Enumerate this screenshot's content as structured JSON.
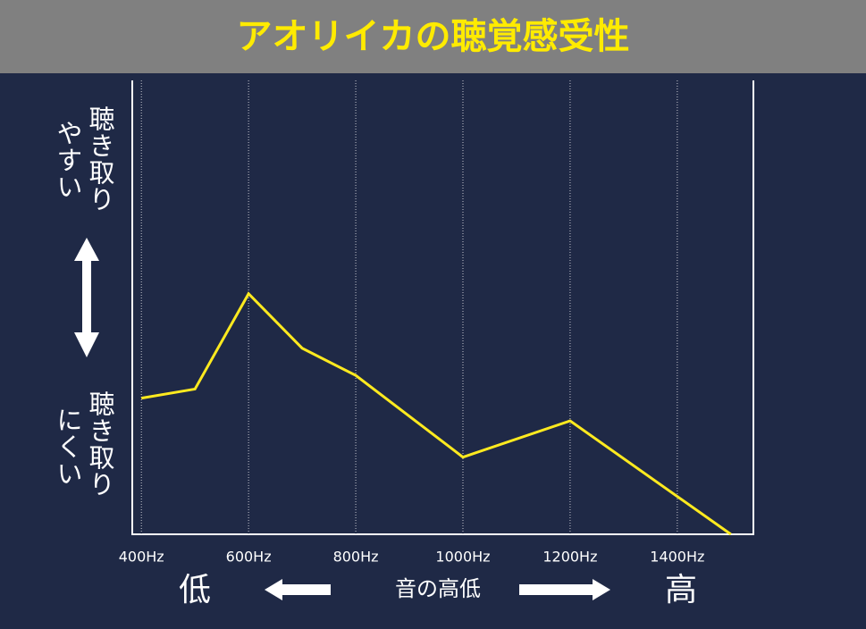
{
  "chart_data": {
    "type": "line",
    "title": "アオリイカの聴覚感受性",
    "x": [
      400,
      500,
      600,
      700,
      800,
      1000,
      1200,
      1500
    ],
    "series": [
      {
        "name": "聴覚感受性",
        "color": "#ffea1f",
        "values": [
          30,
          32,
          53,
          41,
          35,
          17,
          25,
          0
        ]
      }
    ],
    "xlim": [
      383,
      1542
    ],
    "ylim": [
      0,
      100
    ],
    "xticks": [
      {
        "value": 400,
        "label": "400Hz"
      },
      {
        "value": 600,
        "label": "600Hz"
      },
      {
        "value": 800,
        "label": "800Hz"
      },
      {
        "value": 1000,
        "label": "1000Hz"
      },
      {
        "value": 1200,
        "label": "1200Hz"
      },
      {
        "value": 1400,
        "label": "1400Hz"
      }
    ],
    "grid": true,
    "ylabel_high": [
      "聴き取り",
      "やすい"
    ],
    "ylabel_low": [
      "聴き取り",
      "にくい"
    ],
    "xlabel": "音の高低",
    "xlabel_low": "低",
    "xlabel_high": "高"
  }
}
